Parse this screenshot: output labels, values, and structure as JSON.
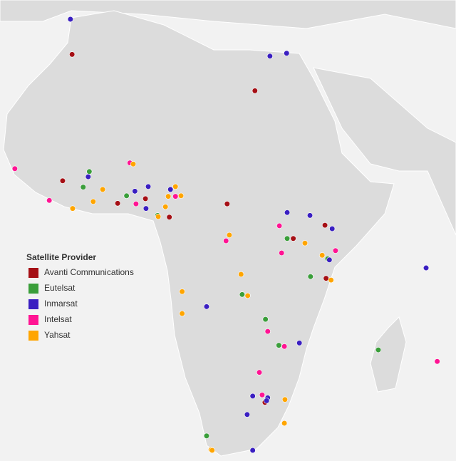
{
  "legend": {
    "title": "Satellite Provider"
  },
  "providers": [
    {
      "name": "Avanti Communications",
      "color": "#a50f15",
      "points": [
        [
          -6.9,
          34.4
        ],
        [
          26.0,
          28.1
        ],
        [
          -8.6,
          12.5
        ],
        [
          1.3,
          8.6
        ],
        [
          6.3,
          9.4
        ],
        [
          10.6,
          6.2
        ],
        [
          21.0,
          8.5
        ],
        [
          38.6,
          4.8
        ],
        [
          32.9,
          2.5
        ],
        [
          38.8,
          -4.4
        ],
        [
          27.8,
          -25.9
        ]
      ]
    },
    {
      "name": "Eutelsat",
      "color": "#3a9e3a",
      "points": [
        [
          -3.8,
          14.1
        ],
        [
          -4.9,
          11.4
        ],
        [
          2.9,
          9.9
        ],
        [
          8.5,
          6.5
        ],
        [
          31.8,
          2.5
        ],
        [
          39.1,
          -1.0
        ],
        [
          36.0,
          -4.1
        ],
        [
          23.7,
          -7.2
        ],
        [
          27.9,
          -11.5
        ],
        [
          30.3,
          -16.0
        ],
        [
          48.2,
          -16.8
        ],
        [
          17.3,
          -31.7
        ]
      ]
    },
    {
      "name": "Inmarsat",
      "color": "#3a1fc1",
      "points": [
        [
          -7.2,
          40.5
        ],
        [
          28.7,
          34.1
        ],
        [
          31.7,
          34.6
        ],
        [
          -4.0,
          13.2
        ],
        [
          4.4,
          10.7
        ],
        [
          6.8,
          11.5
        ],
        [
          10.8,
          11.0
        ],
        [
          6.4,
          7.7
        ],
        [
          31.8,
          7.0
        ],
        [
          35.9,
          6.5
        ],
        [
          39.9,
          4.2
        ],
        [
          39.4,
          -1.2
        ],
        [
          56.8,
          -2.6
        ],
        [
          17.3,
          -9.3
        ],
        [
          34.0,
          -15.6
        ],
        [
          25.6,
          -24.8
        ],
        [
          28.3,
          -25.1
        ],
        [
          28.1,
          -25.6
        ],
        [
          24.6,
          -28.0
        ],
        [
          25.6,
          -34.2
        ]
      ]
    },
    {
      "name": "Intelsat",
      "color": "#ff1493",
      "points": [
        [
          -17.2,
          14.6
        ],
        [
          3.5,
          15.6
        ],
        [
          -11.0,
          9.1
        ],
        [
          4.6,
          8.5
        ],
        [
          11.7,
          9.8
        ],
        [
          30.4,
          4.7
        ],
        [
          20.8,
          2.1
        ],
        [
          30.8,
          0.0
        ],
        [
          40.5,
          0.4
        ],
        [
          28.3,
          -13.6
        ],
        [
          31.3,
          -16.2
        ],
        [
          26.8,
          -20.7
        ],
        [
          27.3,
          -24.6
        ],
        [
          58.8,
          -18.8
        ]
      ]
    },
    {
      "name": "Yahsat",
      "color": "#ffa500",
      "points": [
        [
          4.1,
          15.4
        ],
        [
          -1.4,
          11.0
        ],
        [
          -6.8,
          7.7
        ],
        [
          -3.1,
          8.9
        ],
        [
          8.6,
          6.3
        ],
        [
          10.4,
          9.8
        ],
        [
          12.7,
          9.9
        ],
        [
          11.7,
          11.5
        ],
        [
          9.9,
          8.0
        ],
        [
          21.4,
          3.1
        ],
        [
          35.0,
          1.7
        ],
        [
          38.1,
          -0.4
        ],
        [
          39.7,
          -4.7
        ],
        [
          23.5,
          -3.7
        ],
        [
          24.7,
          -7.4
        ],
        [
          12.9,
          -6.7
        ],
        [
          12.9,
          -10.5
        ],
        [
          31.4,
          -25.4
        ],
        [
          31.3,
          -29.5
        ],
        [
          18.1,
          -34.1
        ],
        [
          18.3,
          -34.2
        ]
      ]
    }
  ]
}
